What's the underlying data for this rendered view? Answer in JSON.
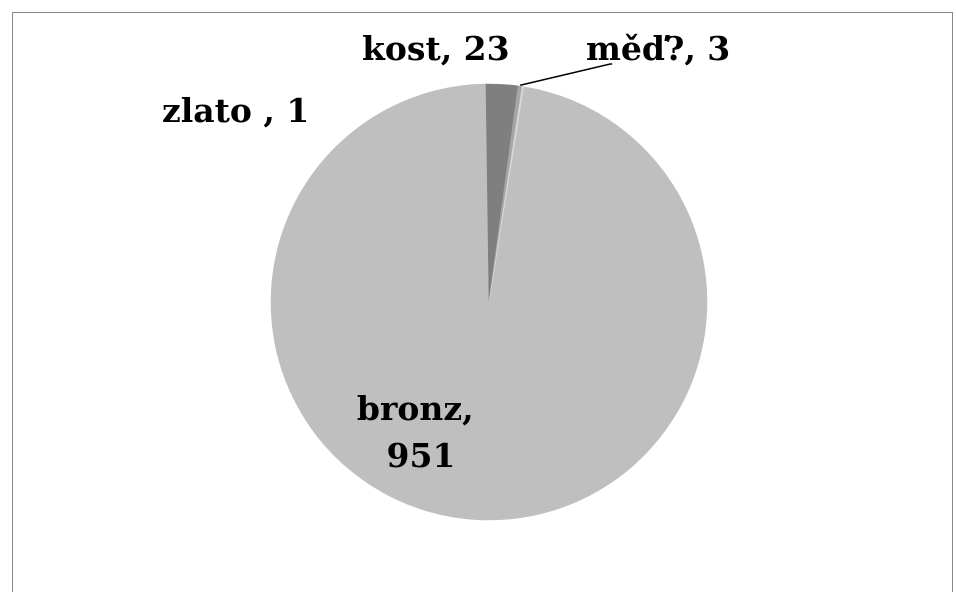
{
  "chart_data": {
    "type": "pie",
    "title": "",
    "slices": [
      {
        "name": "bronz",
        "value": 951,
        "label_lines": [
          "bronz,",
          "951"
        ],
        "color": "#bfbfbf"
      },
      {
        "name": "kost",
        "value": 23,
        "label_lines": [
          "kost, 23"
        ],
        "color": "#7f7f7f"
      },
      {
        "name": "měď?",
        "value": 3,
        "label_lines": [
          "měď?, 3"
        ],
        "color": "#a6a6a6"
      },
      {
        "name": "zlato",
        "value": 1,
        "label_lines": [
          "zlato , 1"
        ],
        "color": "#d9d9d9"
      }
    ],
    "legend": "none",
    "border_color": "#8a8a8a",
    "leader_color": "#000000"
  }
}
